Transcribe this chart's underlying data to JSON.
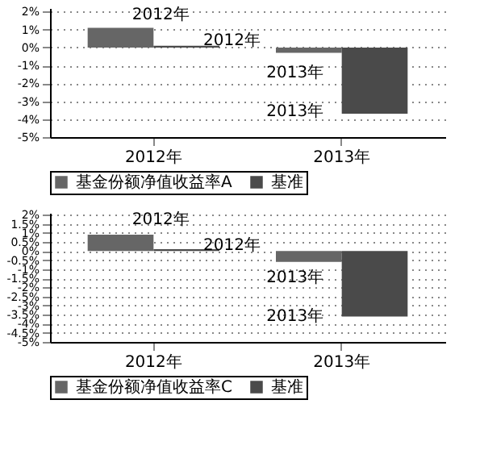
{
  "chart_data": [
    {
      "type": "bar",
      "categories": [
        "2012年",
        "2013年"
      ],
      "series": [
        {
          "name": "基金份额净值收益率A",
          "color": "#666666",
          "values": [
            1.1,
            -0.3
          ]
        },
        {
          "name": "基准",
          "color": "#4a4a4a",
          "values": [
            0.1,
            -3.7
          ]
        }
      ],
      "ylim": [
        -5,
        2.2
      ],
      "yticks": [
        {
          "value": 2,
          "label": "2%"
        },
        {
          "value": 1,
          "label": "1%"
        },
        {
          "value": 0,
          "label": "0%"
        },
        {
          "value": -1,
          "label": "-1%"
        },
        {
          "value": -2,
          "label": "-2%"
        },
        {
          "value": -3,
          "label": "-3%"
        },
        {
          "value": -4,
          "label": "-4%"
        },
        {
          "value": -5,
          "label": "-5%"
        }
      ],
      "grid": "y",
      "legend": "bottom",
      "annotations": [
        "2012年",
        "2012年",
        "2013年",
        "2013年"
      ]
    },
    {
      "type": "bar",
      "categories": [
        "2012年",
        "2013年"
      ],
      "series": [
        {
          "name": "基金份额净值收益率C",
          "color": "#666666",
          "values": [
            0.9,
            -0.6
          ]
        },
        {
          "name": "基准",
          "color": "#4a4a4a",
          "values": [
            0.1,
            -3.6
          ]
        }
      ],
      "ylim": [
        -5,
        2.1
      ],
      "yticks": [
        {
          "value": 2,
          "label": "2%"
        },
        {
          "value": 1.5,
          "label": "1.5%"
        },
        {
          "value": 1,
          "label": "1%"
        },
        {
          "value": 0.5,
          "label": "0.5%"
        },
        {
          "value": 0,
          "label": "0%"
        },
        {
          "value": -0.5,
          "label": "-0.5%"
        },
        {
          "value": -1,
          "label": "-1%"
        },
        {
          "value": -1.5,
          "label": "-1.5%"
        },
        {
          "value": -2,
          "label": "-2%"
        },
        {
          "value": -2.5,
          "label": "-2.5%"
        },
        {
          "value": -3,
          "label": "-3%"
        },
        {
          "value": -3.5,
          "label": "-3.5%"
        },
        {
          "value": -4,
          "label": "-4%"
        },
        {
          "value": -4.5,
          "label": "-4.5%"
        },
        {
          "value": -5,
          "label": "-5%"
        }
      ],
      "grid": "y",
      "legend": "bottom",
      "annotations": [
        "2012年",
        "2012年",
        "2013年",
        "2013年"
      ]
    }
  ]
}
